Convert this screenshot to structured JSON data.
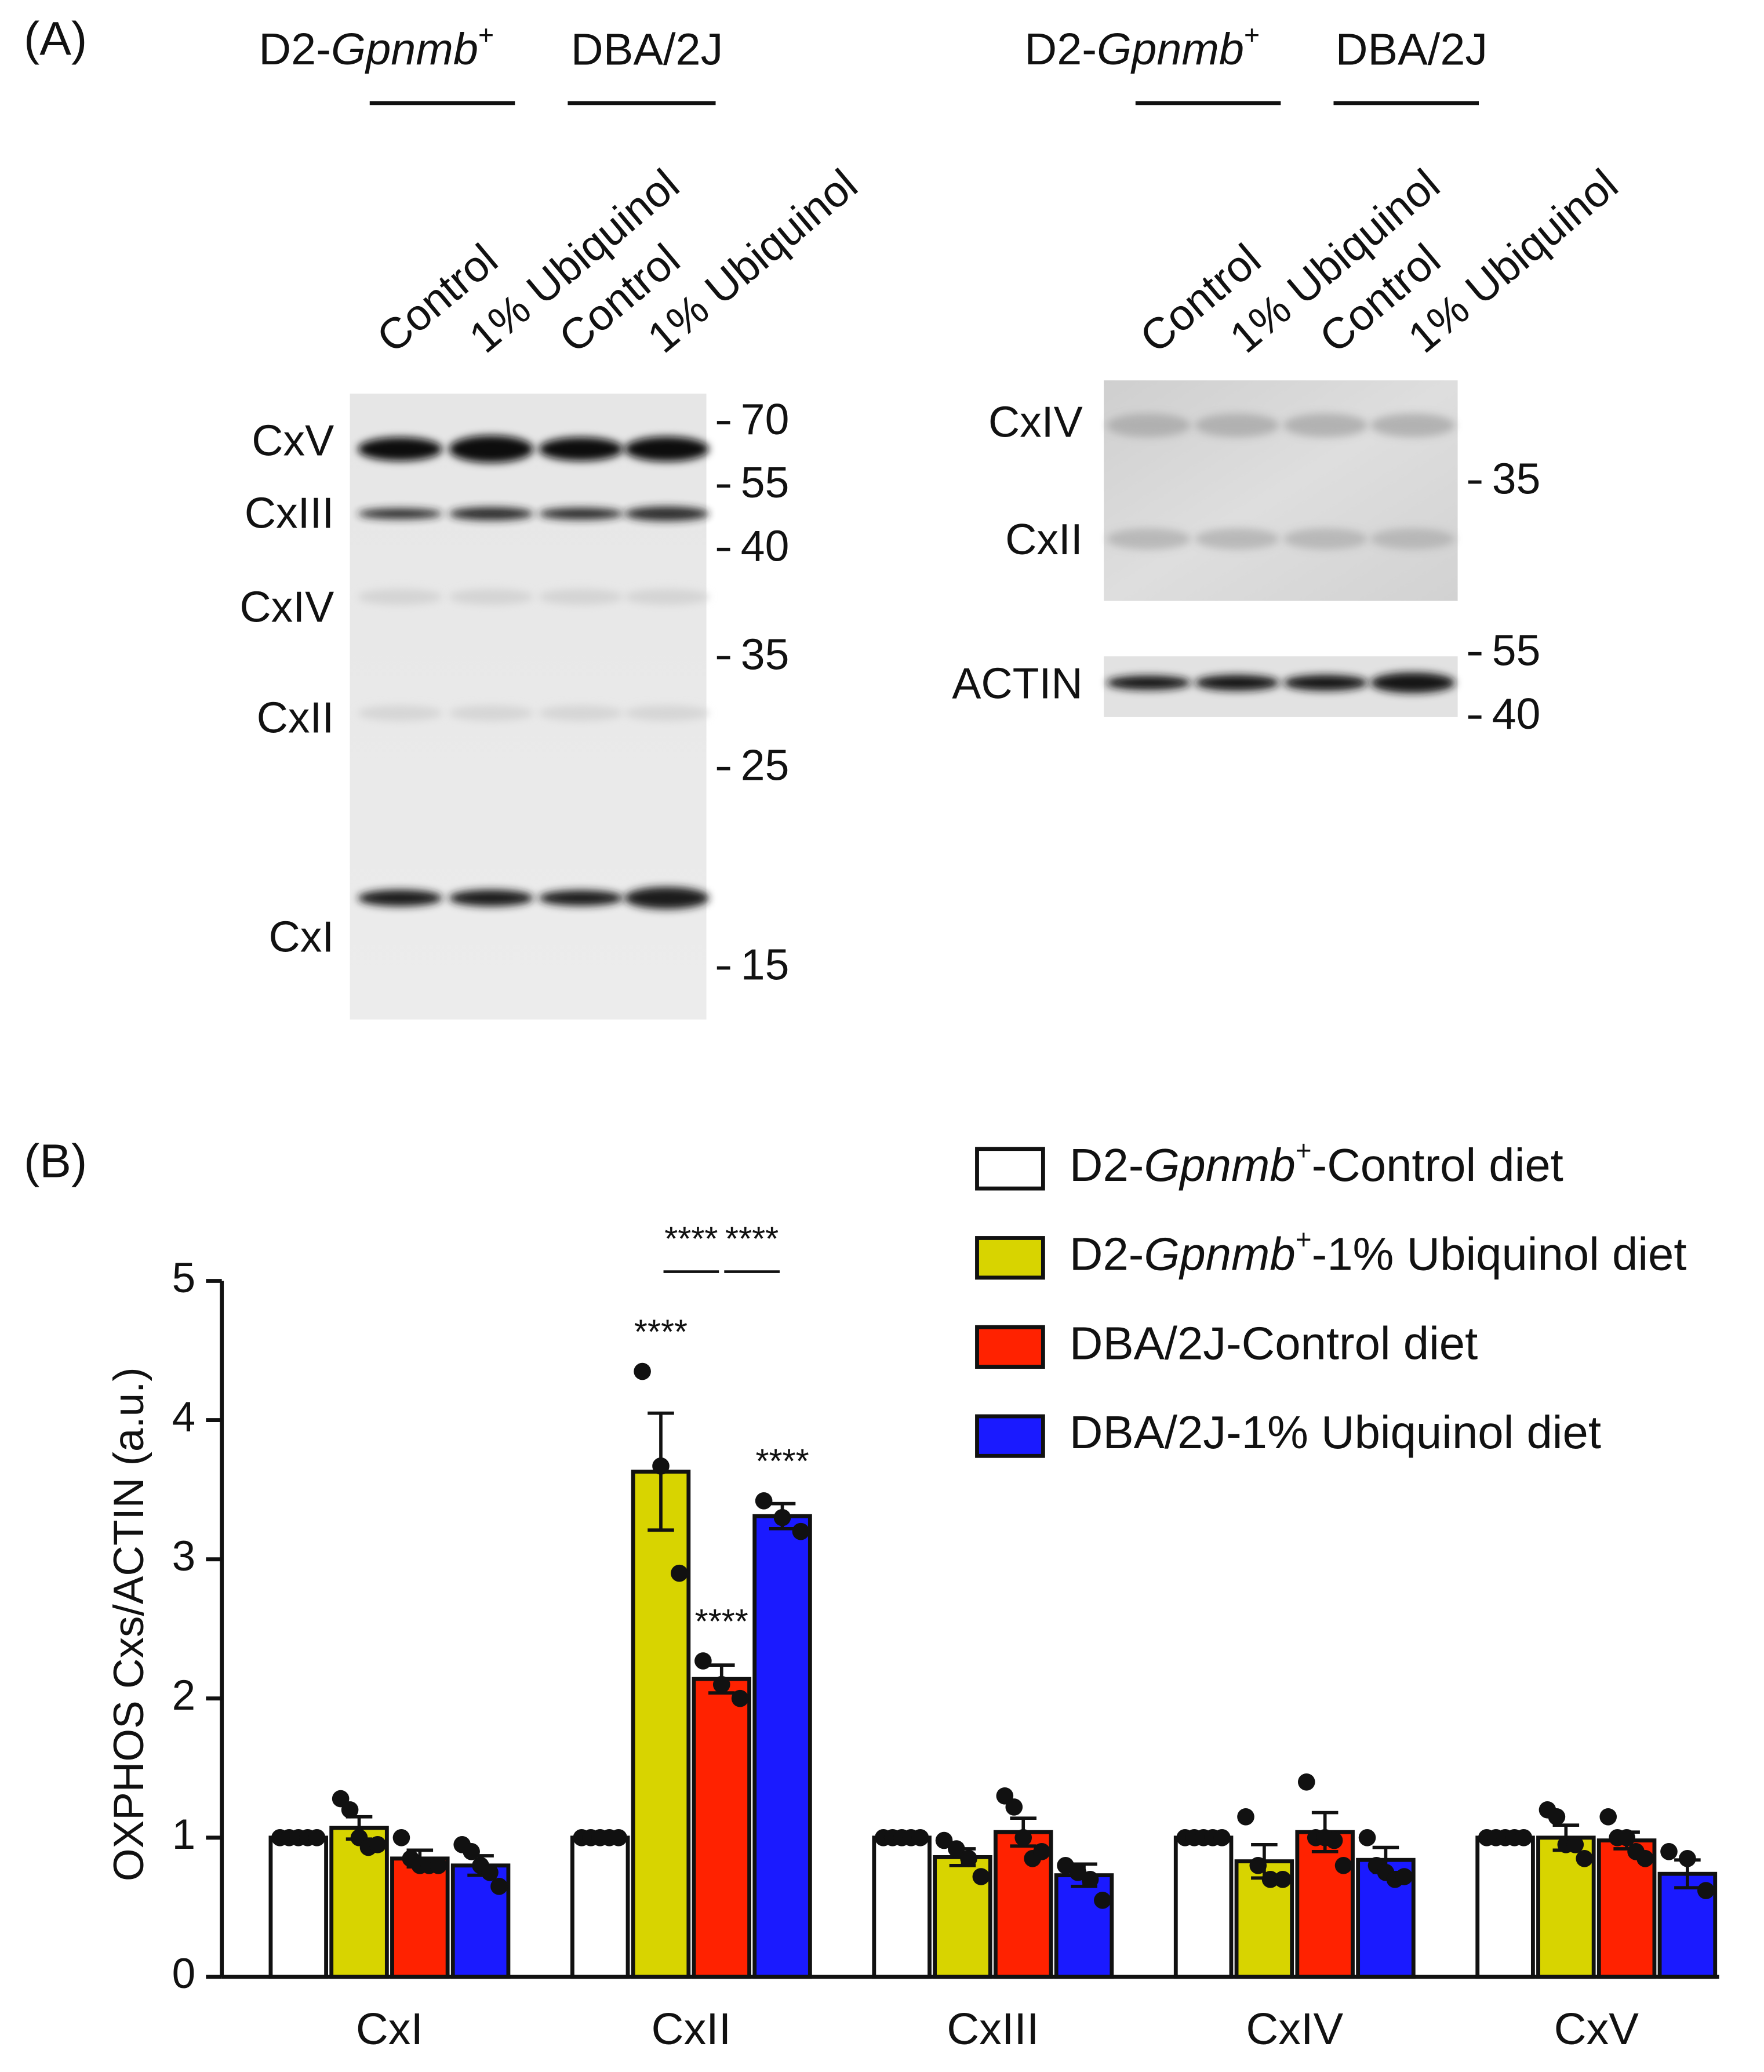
{
  "panel_a": {
    "label": "(A)",
    "blots": [
      {
        "groups": [
          {
            "prefix": "D2-",
            "italic": "Gpnmb",
            "sup": "+"
          },
          "DBA/2J"
        ],
        "lanes": [
          "Control",
          "1% Ubiquinol",
          "Control",
          "1% Ubiquinol"
        ],
        "bands": [
          "CxV",
          "CxIII",
          "CxIV",
          "CxII",
          "CxI"
        ],
        "markers": [
          70,
          55,
          40,
          35,
          25,
          15
        ]
      },
      {
        "groups": [
          {
            "prefix": "D2-",
            "italic": "Gpnmb",
            "sup": "+"
          },
          "DBA/2J"
        ],
        "lanes": [
          "Control",
          "1% Ubiquinol",
          "Control",
          "1% Ubiquinol"
        ],
        "bands": [
          "CxIV",
          "CxII",
          "ACTIN"
        ],
        "markers": [
          35,
          55,
          40
        ]
      }
    ]
  },
  "chart_data": {
    "type": "bar",
    "label": "(B)",
    "y_label": "OXPHOS Cxs/ACTIN (a.u.)",
    "categories": [
      "CxI",
      "CxII",
      "CxIII",
      "CxIV",
      "CxV"
    ],
    "series": [
      {
        "name": {
          "prefix": "D2-",
          "italic": "Gpnmb",
          "sup": "+",
          "suffix": "-Control diet"
        },
        "color": "#ffffff",
        "values": [
          1,
          1,
          1,
          1,
          1
        ],
        "errors": [
          0,
          0,
          0,
          0,
          0
        ],
        "points": [
          [
            1,
            1,
            1,
            1,
            1
          ],
          [
            1,
            1,
            1,
            1,
            1
          ],
          [
            1,
            1,
            1,
            1,
            1
          ],
          [
            1,
            1,
            1,
            1,
            1
          ],
          [
            1,
            1,
            1,
            1,
            1
          ]
        ]
      },
      {
        "name": {
          "prefix": "D2-",
          "italic": "Gpnmb",
          "sup": "+",
          "suffix": "-1% Ubiquinol diet"
        },
        "color": "#d8d400",
        "values": [
          1.07,
          3.63,
          0.86,
          0.83,
          1.0
        ],
        "errors": [
          0.08,
          0.42,
          0.06,
          0.12,
          0.09
        ],
        "points": [
          [
            1.28,
            1.2,
            1.0,
            0.93,
            0.95
          ],
          [
            4.35,
            3.67,
            2.9
          ],
          [
            0.98,
            0.92,
            0.85,
            0.72
          ],
          [
            1.15,
            0.8,
            0.7,
            0.7
          ],
          [
            1.2,
            1.15,
            0.95,
            0.95,
            0.85
          ]
        ]
      },
      {
        "name": "DBA/2J-Control diet",
        "color": "#ff2200",
        "values": [
          0.85,
          2.14,
          1.04,
          1.04,
          0.98
        ],
        "errors": [
          0.06,
          0.1,
          0.1,
          0.14,
          0.06
        ],
        "points": [
          [
            1.0,
            0.85,
            0.8,
            0.8,
            0.8
          ],
          [
            2.27,
            2.1,
            2.0
          ],
          [
            1.3,
            1.22,
            1.0,
            0.85,
            0.9
          ],
          [
            1.4,
            1.0,
            1.0,
            0.98,
            0.8
          ],
          [
            1.15,
            1.0,
            1.0,
            0.9,
            0.85
          ]
        ]
      },
      {
        "name": "DBA/2J-1% Ubiquinol diet",
        "color": "#1a1aff",
        "values": [
          0.8,
          3.31,
          0.73,
          0.84,
          0.74
        ],
        "errors": [
          0.07,
          0.09,
          0.08,
          0.09,
          0.1
        ],
        "points": [
          [
            0.95,
            0.9,
            0.8,
            0.75,
            0.65
          ],
          [
            3.42,
            3.3,
            3.2
          ],
          [
            0.8,
            0.75,
            0.7,
            0.55
          ],
          [
            1.0,
            0.8,
            0.75,
            0.7,
            0.72
          ],
          [
            0.9,
            0.85,
            0.62
          ]
        ]
      }
    ],
    "ylim": [
      0,
      5
    ],
    "yticks": [
      0,
      1,
      2,
      3,
      4,
      5
    ],
    "annotations": [
      {
        "text": "****",
        "category": 1,
        "series": 1
      },
      {
        "text": "****",
        "category": 1,
        "series": 2
      },
      {
        "text": "****",
        "category": 1,
        "series": 3
      },
      {
        "text": "****",
        "category": 1,
        "between": [
          1,
          2
        ]
      },
      {
        "text": "****",
        "category": 1,
        "between": [
          2,
          3
        ]
      }
    ]
  }
}
